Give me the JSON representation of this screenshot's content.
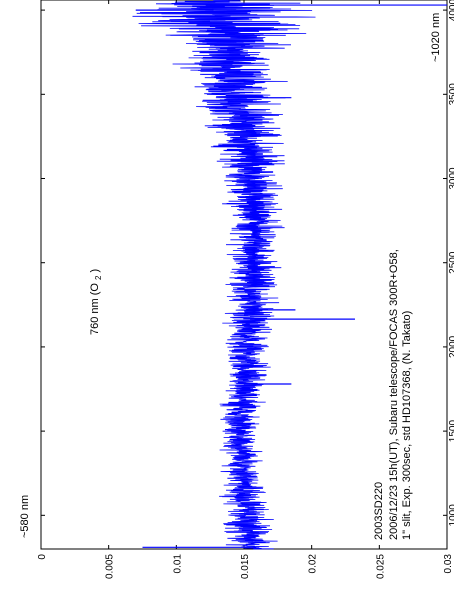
{
  "chart_data": {
    "type": "line",
    "orientation": "rotated-90-ccw",
    "x_axis_ticks": [
      "1000",
      "1500",
      "2000",
      "2500",
      "3000",
      "3500",
      "4000"
    ],
    "y_axis_ticks": [
      "0",
      "0.005",
      "0.01",
      "0.015",
      "0.02",
      "0.025",
      "0.03"
    ],
    "xlim": [
      800,
      4060
    ],
    "ylim": [
      0,
      0.03
    ],
    "annotations": {
      "wavelength_start": "~580 nm",
      "wavelength_end": "~1020 nm",
      "o2_label": "760 nm (O",
      "o2_subscript": "2",
      "o2_suffix": ")",
      "object": "2003SD220",
      "line1": "2006/12/23 15h(UT), Subaru telescope/FOCAS 300R+O58,",
      "line2": "1\" slit, Exp. 300sec, std HD107368, (N. Takato)"
    },
    "series": [
      {
        "color": "#0000ff",
        "trend_x": [
          800,
          900,
          1000,
          1200,
          1500,
          1800,
          2000,
          2200,
          2500,
          2800,
          3000,
          3300,
          3500,
          3700,
          3850,
          3950,
          4050
        ],
        "trend_y": [
          0.0155,
          0.0153,
          0.0152,
          0.015,
          0.0147,
          0.015,
          0.0152,
          0.0155,
          0.0158,
          0.0158,
          0.0156,
          0.015,
          0.0145,
          0.014,
          0.0135,
          0.013,
          0.0125
        ],
        "noise_x": [
          800,
          1000,
          1500,
          2000,
          2500,
          3000,
          3500,
          3800,
          4050
        ],
        "noise_amp": [
          0.001,
          0.0007,
          0.0006,
          0.0008,
          0.0008,
          0.001,
          0.0014,
          0.002,
          0.0035
        ],
        "spikes": [
          {
            "x": 810,
            "y": 0.0075
          },
          {
            "x": 1780,
            "y": 0.0185
          },
          {
            "x": 2165,
            "y": 0.0232
          },
          {
            "x": 2220,
            "y": 0.0188
          },
          {
            "x": 3480,
            "y": 0.0185
          },
          {
            "x": 4000,
            "y": 0.007
          },
          {
            "x": 4030,
            "y": 0.03
          }
        ]
      }
    ]
  }
}
